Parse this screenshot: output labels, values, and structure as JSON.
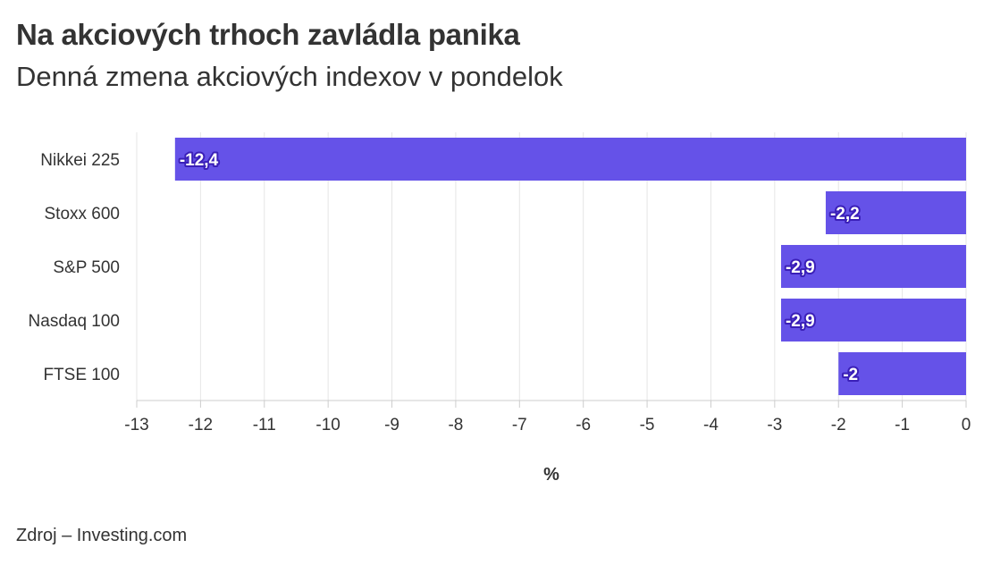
{
  "title": "Na akciových trhoch zavládla panika",
  "subtitle": "Denná zmena akciových indexov v pondelok",
  "source": "Zdroj – Investing.com",
  "colors": {
    "bar": "#6552e8",
    "grid": "#e6e6e6",
    "text": "#333333"
  },
  "chart_data": {
    "type": "bar",
    "orientation": "horizontal",
    "categories": [
      "Nikkei 225",
      "Stoxx 600",
      "S&P 500",
      "Nasdaq 100",
      "FTSE 100"
    ],
    "values": [
      -12.4,
      -2.2,
      -2.9,
      -2.9,
      -2.0
    ],
    "value_labels": [
      "-12,4",
      "-2,2",
      "-2,9",
      "-2,9",
      "-2"
    ],
    "xlabel": "%",
    "xlim": [
      -13,
      0
    ],
    "x_ticks": [
      -13,
      -12,
      -11,
      -10,
      -9,
      -8,
      -7,
      -6,
      -5,
      -4,
      -3,
      -2,
      -1,
      0
    ],
    "grid": true
  }
}
